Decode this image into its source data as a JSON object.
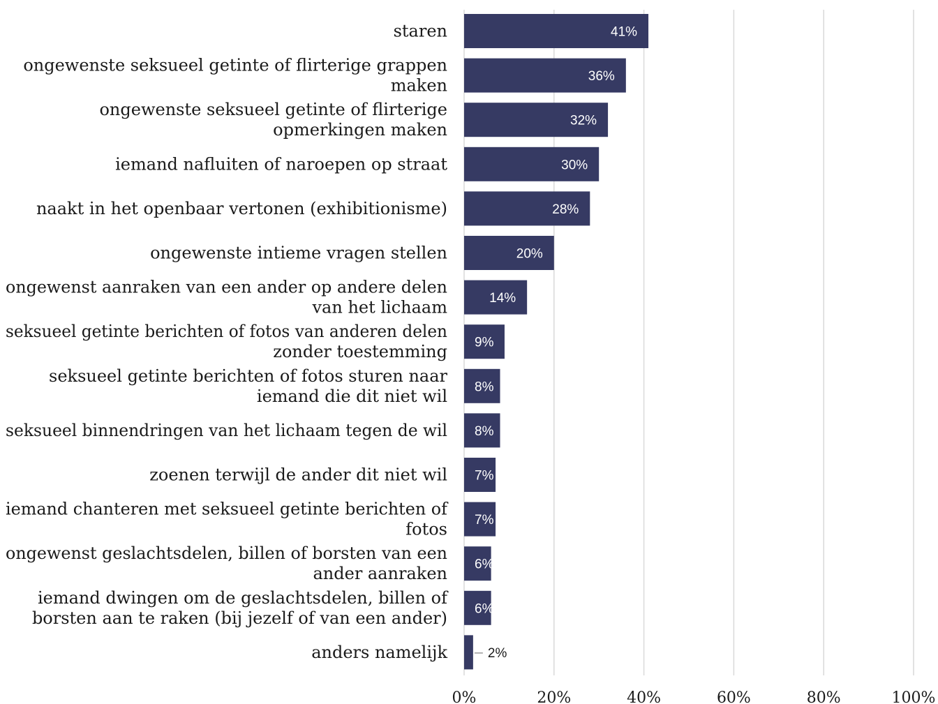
{
  "chart_data": {
    "type": "bar",
    "orientation": "horizontal",
    "categories": [
      "staren",
      "ongewenste seksueel getinte of flirterige grappen maken",
      "ongewenste seksueel getinte of flirterige opmerkingen maken",
      "iemand nafluiten of naroepen op straat",
      "naakt in het openbaar vertonen (exhibitionisme)",
      "ongewenste intieme vragen stellen",
      "ongewenst aanraken van een ander op andere delen van het lichaam",
      "seksueel getinte berichten of fotos van anderen delen zonder toestemming",
      "seksueel getinte berichten  of fotos sturen naar iemand die dit niet wil",
      "seksueel binnendringen van het lichaam tegen de wil",
      "zoenen terwijl de ander dit niet wil",
      "iemand chanteren met seksueel getinte berichten of fotos",
      "ongewenst geslachtsdelen, billen of borsten van een ander aanraken",
      "iemand dwingen om de geslachtsdelen, billen of borsten aan te raken (bij jezelf of van een ander)",
      "anders namelijk"
    ],
    "category_lines": [
      [
        "staren"
      ],
      [
        "ongewenste seksueel getinte of flirterige grappen",
        "maken"
      ],
      [
        "ongewenste seksueel getinte of flirterige",
        "opmerkingen maken"
      ],
      [
        "iemand nafluiten of naroepen op straat"
      ],
      [
        "naakt in het openbaar vertonen (exhibitionisme)"
      ],
      [
        "ongewenste intieme vragen stellen"
      ],
      [
        "ongewenst aanraken van een ander op andere delen",
        "van het lichaam"
      ],
      [
        "seksueel getinte berichten of fotos van anderen delen",
        "zonder toestemming"
      ],
      [
        "seksueel getinte berichten  of fotos sturen naar",
        "iemand die dit niet wil"
      ],
      [
        "seksueel binnendringen van het lichaam tegen de wil"
      ],
      [
        "zoenen terwijl de ander dit niet wil"
      ],
      [
        "iemand chanteren met seksueel getinte berichten of",
        "fotos"
      ],
      [
        "ongewenst geslachtsdelen, billen of borsten van een",
        "ander aanraken"
      ],
      [
        "iemand dwingen om de geslachtsdelen, billen of",
        "borsten aan te raken (bij jezelf of van een ander)"
      ],
      [
        "anders namelijk"
      ]
    ],
    "values": [
      41,
      36,
      32,
      30,
      28,
      20,
      14,
      9,
      8,
      8,
      7,
      7,
      6,
      6,
      2
    ],
    "value_labels": [
      "41%",
      "36%",
      "32%",
      "30%",
      "28%",
      "20%",
      "14%",
      "9%",
      "8%",
      "8%",
      "7%",
      "7%",
      "6%",
      "6%",
      "2%"
    ],
    "xlim": [
      0,
      100
    ],
    "x_ticks": [
      0,
      20,
      40,
      60,
      80,
      100
    ],
    "x_tick_labels": [
      "0%",
      "20%",
      "40%",
      "60%",
      "80%",
      "100%"
    ],
    "grid": "vertical",
    "legend": "none",
    "colors": {
      "bar": "#363a63",
      "grid": "#d9d9d9",
      "label_inside": "#ffffff",
      "label_outside": "#1a1a1a"
    }
  }
}
